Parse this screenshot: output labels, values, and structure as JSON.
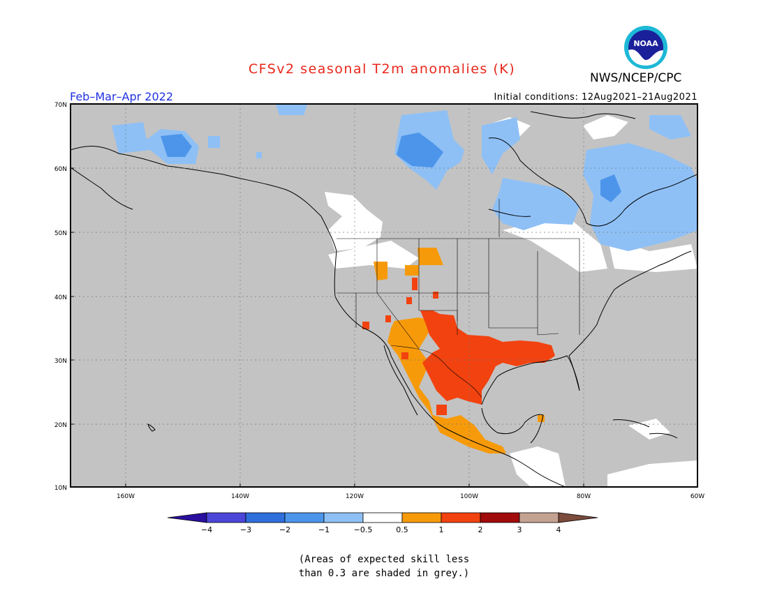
{
  "title": "CFSv2 seasonal T2m anomalies (K)",
  "season": "Feb–Mar–Apr 2022",
  "agency": "NWS/NCEP/CPC",
  "logo_text": "NOAA",
  "initial_conditions": "Initial conditions:  12Aug2021–21Aug2021",
  "lat_labels": [
    "70N",
    "60N",
    "50N",
    "40N",
    "30N",
    "20N",
    "10N"
  ],
  "lon_labels": [
    "160W",
    "140W",
    "120W",
    "100W",
    "80W",
    "60W"
  ],
  "colorbar": {
    "labels": [
      "−4",
      "−3",
      "−2",
      "−1",
      "−0.5",
      "0.5",
      "1",
      "2",
      "3",
      "4"
    ],
    "colors": [
      "#2a0f9e",
      "#4b46d8",
      "#2f6fdc",
      "#4c95ea",
      "#8ec0f6",
      "#ffffff",
      "#f79a0a",
      "#f2420f",
      "#a10b0b",
      "#c4a292",
      "#7b4b3c"
    ]
  },
  "skill_note": [
    "(Areas of expected skill less",
    "than 0.3 are shaded in grey.)"
  ],
  "colors": {
    "title": "#e8261a",
    "season": "#1f31e0",
    "land_grey": "#c3c3c3"
  }
}
